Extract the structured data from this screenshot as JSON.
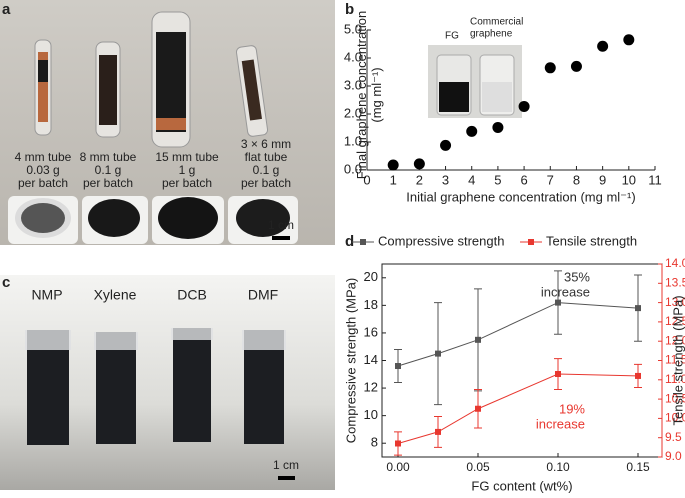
{
  "panel_labels": [
    "a",
    "b",
    "c",
    "d"
  ],
  "panel_a": {
    "tubes": [
      [
        "4 mm tube",
        "0.03 g",
        "per batch"
      ],
      [
        "8 mm tube",
        "0.1 g",
        "per batch"
      ],
      [
        "15 mm tube",
        "1 g",
        "per batch"
      ],
      [
        "3 × 6 mm",
        "flat tube",
        "0.1 g",
        "per batch"
      ]
    ],
    "scale_bar": "1 cm"
  },
  "panel_c": {
    "solvents": [
      "NMP",
      "Xylene",
      "DCB",
      "DMF"
    ],
    "scale_bar": "1 cm"
  },
  "chart_data": [
    {
      "type": "scatter",
      "x_label": "Initial graphene concentration (mg ml⁻¹)",
      "y_label": "Final graphene concentration (mg ml⁻¹)",
      "inset_labels": {
        "fg": "FG",
        "commercial": [
          "Commercial",
          "graphene"
        ]
      },
      "x": [
        1,
        2,
        3,
        4,
        5,
        6,
        7,
        8,
        9,
        10
      ],
      "values": [
        0.18,
        0.22,
        0.88,
        1.38,
        1.52,
        2.27,
        3.65,
        3.7,
        4.42,
        4.65
      ],
      "color": "#000000",
      "xlim": [
        0,
        11
      ],
      "ylim": [
        0,
        5
      ],
      "xticks": [
        0,
        1,
        2,
        3,
        4,
        5,
        6,
        7,
        8,
        9,
        10,
        11
      ],
      "yticks": [
        {
          "value": 0,
          "label": "0.0"
        },
        {
          "value": 1,
          "label": "1.0"
        },
        {
          "value": 2,
          "label": "2.0"
        },
        {
          "value": 3,
          "label": "3.0"
        },
        {
          "value": 4,
          "label": "4.0"
        },
        {
          "value": 5,
          "label": "5.0"
        }
      ]
    },
    {
      "type": "line",
      "x_label": "FG content (wt%)",
      "y_label": "Compressive strength (MPa)",
      "y2_label": "Tensile strength (MPa)",
      "x": [
        0,
        0.025,
        0.05,
        0.1,
        0.15
      ],
      "series": [
        {
          "name": "Compressive strength",
          "color": "#555555",
          "values": [
            13.6,
            14.5,
            15.5,
            18.2,
            17.8
          ],
          "errors": [
            1.2,
            3.7,
            3.7,
            2.3,
            2.4
          ]
        },
        {
          "name": "Tensile strength",
          "color": "#e8372f",
          "axis": "y2",
          "values": [
            9.35,
            9.65,
            10.25,
            11.15,
            11.1
          ],
          "errors": [
            0.3,
            0.4,
            0.5,
            0.4,
            0.3
          ]
        }
      ],
      "annotations": [
        {
          "lines": [
            "35%",
            "increase"
          ],
          "color": "#333333"
        },
        {
          "lines": [
            "19%",
            "increase"
          ],
          "color": "#e8372f"
        }
      ],
      "xlim": [
        -0.01,
        0.165
      ],
      "ylim": [
        7,
        21
      ],
      "y2lim": [
        9,
        14
      ],
      "xticks": [
        {
          "value": 0,
          "label": "0.00"
        },
        {
          "value": 0.05,
          "label": "0.05"
        },
        {
          "value": 0.1,
          "label": "0.10"
        },
        {
          "value": 0.15,
          "label": "0.15"
        }
      ],
      "yticks": [
        8,
        10,
        12,
        14,
        16,
        18,
        20
      ],
      "y2ticks": [
        {
          "value": 9,
          "label": "9.0"
        },
        {
          "value": 9.5,
          "label": "9.5"
        },
        {
          "value": 10,
          "label": "10.0"
        },
        {
          "value": 10.5,
          "label": "10.5"
        },
        {
          "value": 11,
          "label": "11.0"
        },
        {
          "value": 11.5,
          "label": "11.5"
        },
        {
          "value": 12,
          "label": "12.0"
        },
        {
          "value": 12.5,
          "label": "12.5"
        },
        {
          "value": 13,
          "label": "13.0"
        },
        {
          "value": 13.5,
          "label": "13.5"
        },
        {
          "value": 14,
          "label": "14.0"
        }
      ]
    }
  ]
}
